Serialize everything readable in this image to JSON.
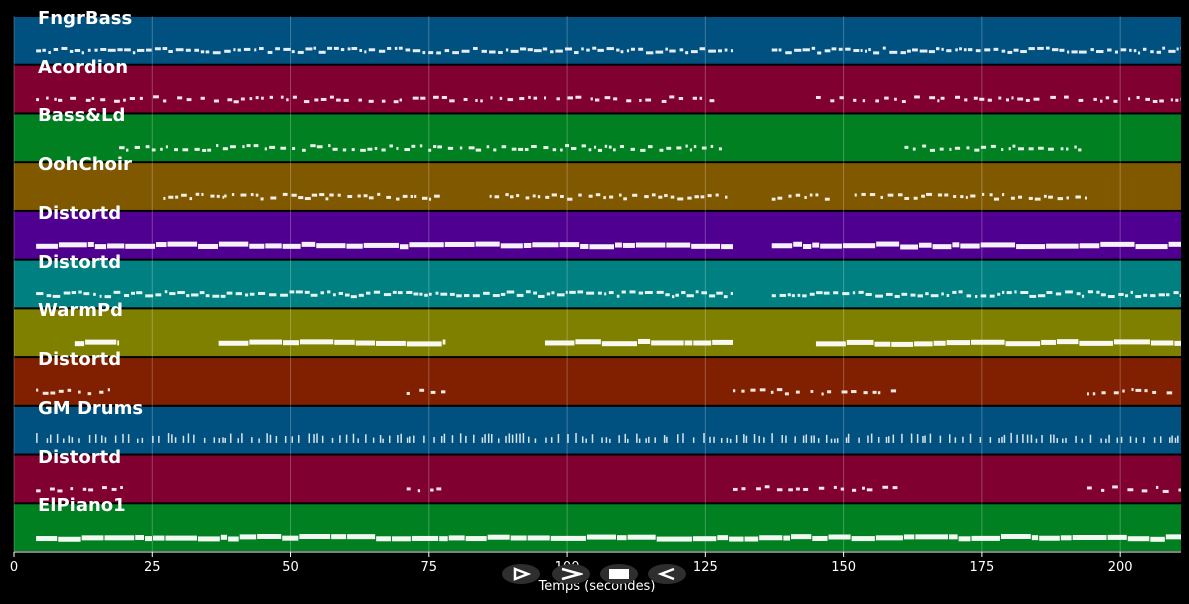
{
  "chart_data": {
    "type": "piano-roll",
    "xlabel": "Temps (secondes)",
    "xlim": [
      0,
      211
    ],
    "xticks": [
      0,
      25,
      50,
      75,
      100,
      125,
      150,
      175,
      200
    ],
    "grid": true,
    "tracks": [
      {
        "name": "FngrBass",
        "color": "#005080",
        "segments": [
          [
            4,
            130
          ],
          [
            137,
            211
          ]
        ],
        "density": "dense"
      },
      {
        "name": "Acordion",
        "color": "#800030",
        "segments": [
          [
            4,
            128
          ],
          [
            145,
            211
          ]
        ],
        "density": "sparse"
      },
      {
        "name": "Bass&Ld",
        "color": "#008020",
        "segments": [
          [
            19,
            128
          ],
          [
            161,
            193
          ]
        ],
        "density": "medium"
      },
      {
        "name": "OohChoir",
        "color": "#805800",
        "segments": [
          [
            27,
            38
          ],
          [
            38,
            77
          ],
          [
            86,
            129
          ],
          [
            137,
            148
          ],
          [
            152,
            194
          ]
        ],
        "density": "medium"
      },
      {
        "name": "Distortd",
        "color": "#500090",
        "segments": [
          [
            4,
            130
          ],
          [
            137,
            211
          ]
        ],
        "density": "solid"
      },
      {
        "name": "Distortd",
        "color": "#008080",
        "segments": [
          [
            4,
            130
          ],
          [
            137,
            211
          ]
        ],
        "density": "dense"
      },
      {
        "name": "WarmPd",
        "color": "#808000",
        "segments": [
          [
            11,
            19
          ],
          [
            37,
            78
          ],
          [
            96,
            130
          ],
          [
            145,
            211
          ]
        ],
        "density": "solid"
      },
      {
        "name": "Distortd",
        "color": "#802000",
        "segments": [
          [
            4,
            19
          ],
          [
            71,
            78
          ],
          [
            130,
            160
          ],
          [
            194,
            210
          ]
        ],
        "density": "sparse"
      },
      {
        "name": "GM Drums",
        "color": "#005080",
        "segments": [
          [
            4,
            211
          ]
        ],
        "density": "drum"
      },
      {
        "name": "Distortd",
        "color": "#800030",
        "segments": [
          [
            4,
            20
          ],
          [
            71,
            78
          ],
          [
            130,
            160
          ],
          [
            194,
            211
          ]
        ],
        "density": "sparse"
      },
      {
        "name": "ElPiano1",
        "color": "#008020",
        "segments": [
          [
            4,
            211
          ]
        ],
        "density": "solid"
      }
    ]
  },
  "controls": [
    {
      "name": "play-forward",
      "glyph": "⊳"
    },
    {
      "name": "next",
      "glyph": ">"
    },
    {
      "name": "stop",
      "glyph": "■"
    },
    {
      "name": "previous",
      "glyph": "<"
    }
  ]
}
